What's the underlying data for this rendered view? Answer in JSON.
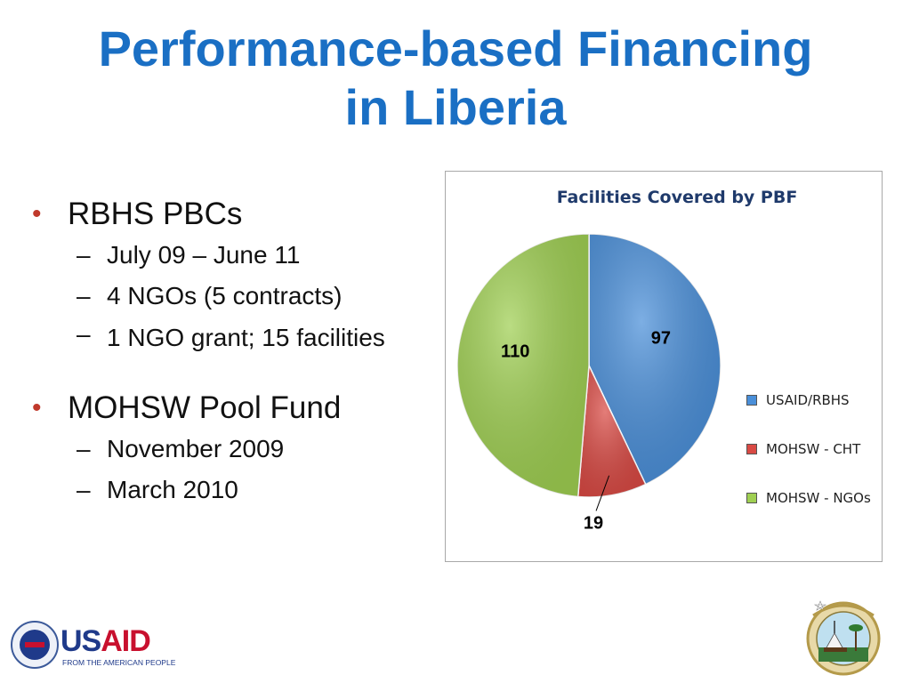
{
  "title": {
    "line1": "Performance-based Financing",
    "line2": "in Liberia"
  },
  "bullets": {
    "items": [
      {
        "label": "RBHS PBCs",
        "sub": [
          "July 09 – June 11",
          "4 NGOs (5 contracts)",
          "1 NGO grant; 15 facilities"
        ]
      },
      {
        "label": "MOHSW Pool Fund",
        "sub": [
          "November 2009",
          "March 2010"
        ]
      }
    ]
  },
  "chart_data": {
    "type": "pie",
    "title": "Facilities Covered by PBF",
    "categories": [
      "USAID/RBHS",
      "MOHSW - CHT",
      "MOHSW - NGOs"
    ],
    "values": [
      97,
      19,
      110
    ],
    "colors": [
      "#4a8fd9",
      "#d94a44",
      "#9fcf52"
    ],
    "legend": "right"
  },
  "logos": {
    "usaid_word_us": "US",
    "usaid_word_aid": "AID",
    "usaid_tagline": "FROM THE AMERICAN PEOPLE"
  }
}
